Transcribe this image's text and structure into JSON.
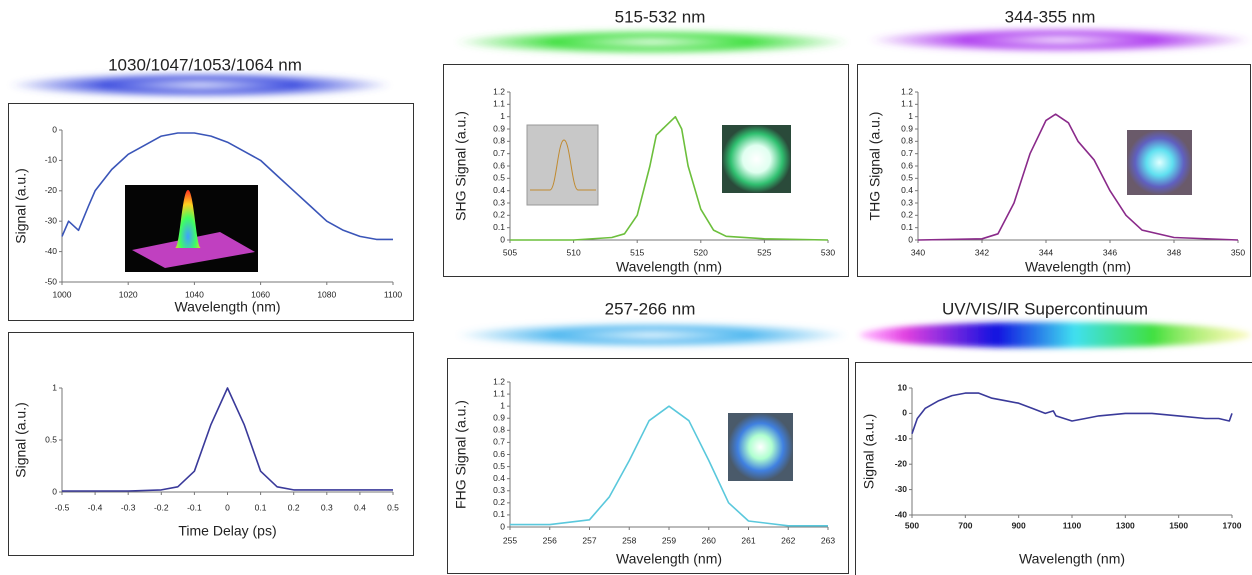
{
  "chart_data": [
    {
      "type": "line",
      "title": "1030/1047/1053/1064 nm",
      "xlabel": "Wavelength (nm)",
      "ylabel": "Signal (a.u.)",
      "color": "#3a55b8",
      "x": [
        1000,
        1002,
        1005,
        1008,
        1010,
        1015,
        1020,
        1025,
        1030,
        1035,
        1040,
        1045,
        1050,
        1055,
        1060,
        1065,
        1070,
        1075,
        1080,
        1085,
        1090,
        1095,
        1100
      ],
      "values": [
        -35,
        -30,
        -33,
        -25,
        -20,
        -13,
        -8,
        -5,
        -2,
        -1,
        -1,
        -2,
        -4,
        -7,
        -10,
        -15,
        -20,
        -25,
        -30,
        -33,
        -35,
        -36,
        -36
      ],
      "xlim": [
        1000,
        1100
      ],
      "xticks": [
        1000,
        1020,
        1040,
        1060,
        1080,
        1100
      ],
      "ylim": [
        -50,
        0
      ],
      "yticks": [
        0,
        -10,
        -20,
        -30,
        -40,
        -50
      ]
    },
    {
      "type": "line",
      "xlabel": "Time Delay (ps)",
      "ylabel": "Signal (a.u.)",
      "color": "#3a3a9a",
      "x": [
        -0.5,
        -0.3,
        -0.2,
        -0.15,
        -0.1,
        -0.05,
        0,
        0.05,
        0.1,
        0.15,
        0.2,
        0.3,
        0.5
      ],
      "values": [
        0.01,
        0.01,
        0.02,
        0.05,
        0.2,
        0.65,
        1,
        0.65,
        0.2,
        0.05,
        0.02,
        0.02,
        0.02
      ],
      "xlim": [
        -0.5,
        0.5
      ],
      "xticks": [
        -0.5,
        -0.4,
        -0.3,
        -0.2,
        -0.1,
        0,
        0.1,
        0.2,
        0.3,
        0.4,
        0.5
      ],
      "ylim": [
        0,
        1
      ],
      "yticks": [
        0,
        0.5,
        1
      ]
    },
    {
      "type": "line",
      "title": "515-532 nm",
      "xlabel": "Wavelength (nm)",
      "ylabel": "SHG Signal (a.u.)",
      "color": "#6cbf3c",
      "x": [
        505,
        510,
        513,
        514,
        515,
        516,
        516.5,
        517,
        518,
        518.5,
        519,
        520,
        521,
        522,
        525,
        530
      ],
      "values": [
        0,
        0,
        0.02,
        0.05,
        0.2,
        0.6,
        0.85,
        0.9,
        1,
        0.9,
        0.6,
        0.25,
        0.08,
        0.03,
        0.01,
        0
      ],
      "xlim": [
        505,
        530
      ],
      "xticks": [
        505,
        510,
        515,
        520,
        525,
        530
      ],
      "ylim": [
        0,
        1.2
      ],
      "yticks": [
        0,
        0.1,
        0.2,
        0.3,
        0.4,
        0.5,
        0.6,
        0.7,
        0.8,
        0.9,
        1,
        1.1,
        1.2
      ]
    },
    {
      "type": "line",
      "title": "344-355 nm",
      "xlabel": "Wavelength (nm)",
      "ylabel": "THG Signal (a.u.)",
      "color": "#8a2a8a",
      "x": [
        340,
        342,
        342.5,
        343,
        343.5,
        344,
        344.3,
        344.7,
        345,
        345.5,
        346,
        346.5,
        347,
        348,
        350
      ],
      "values": [
        0,
        0.01,
        0.05,
        0.3,
        0.7,
        0.97,
        1.02,
        0.95,
        0.8,
        0.65,
        0.4,
        0.2,
        0.08,
        0.02,
        0
      ],
      "xlim": [
        340,
        350
      ],
      "xticks": [
        340,
        342,
        344,
        346,
        348,
        350
      ],
      "ylim": [
        0,
        1.2
      ],
      "yticks": [
        0,
        0.1,
        0.2,
        0.3,
        0.4,
        0.5,
        0.6,
        0.7,
        0.8,
        0.9,
        1,
        1.1,
        1.2
      ]
    },
    {
      "type": "line",
      "title": "257-266 nm",
      "xlabel": "Wavelength (nm)",
      "ylabel": "FHG Signal (a.u.)",
      "color": "#5ac8dc",
      "x": [
        255,
        256,
        257,
        257.5,
        258,
        258.5,
        259,
        259.5,
        260,
        260.5,
        261,
        262,
        263
      ],
      "values": [
        0.02,
        0.02,
        0.06,
        0.25,
        0.55,
        0.88,
        1,
        0.88,
        0.55,
        0.2,
        0.05,
        0.01,
        0.01
      ],
      "xlim": [
        255,
        263
      ],
      "xticks": [
        255,
        256,
        257,
        258,
        259,
        260,
        261,
        262,
        263
      ],
      "ylim": [
        0,
        1.2
      ],
      "yticks": [
        0,
        0.1,
        0.2,
        0.3,
        0.4,
        0.5,
        0.6,
        0.7,
        0.8,
        0.9,
        1,
        1.1,
        1.2
      ]
    },
    {
      "type": "line",
      "title": "UV/VIS/IR Supercontinuum",
      "xlabel": "Wavelength (nm)",
      "ylabel": "Signal (a.u.)",
      "color": "#3a3a9a",
      "x": [
        500,
        520,
        550,
        600,
        650,
        700,
        750,
        800,
        850,
        900,
        950,
        1000,
        1030,
        1040,
        1100,
        1150,
        1200,
        1300,
        1400,
        1500,
        1600,
        1650,
        1690,
        1700
      ],
      "values": [
        -8,
        -2,
        2,
        5,
        7,
        8,
        8,
        6,
        5,
        4,
        2,
        0,
        1,
        -1,
        -3,
        -2,
        -1,
        0,
        0,
        -1,
        -2,
        -2,
        -3,
        0
      ],
      "xlim": [
        500,
        1700
      ],
      "xticks": [
        500,
        700,
        900,
        1100,
        1300,
        1500,
        1700
      ],
      "ylim": [
        -40,
        10
      ],
      "yticks": [
        10,
        0,
        -10,
        -20,
        -30,
        -40
      ]
    }
  ]
}
